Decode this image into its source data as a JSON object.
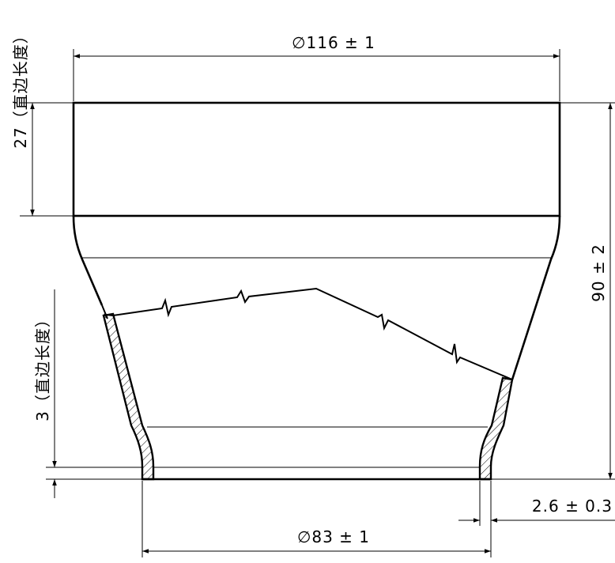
{
  "drawing": {
    "dimensions": {
      "top_diameter": "∅116 ± 1",
      "bottom_diameter": "∅83 ± 1",
      "total_height": "90 ± 2",
      "wall_thickness": "2.6 ± 0.3",
      "top_straight_length": "27（直边长度）",
      "bottom_straight_length": "3（直边长度）"
    },
    "colors": {
      "line": "#000000",
      "background": "#ffffff"
    }
  }
}
